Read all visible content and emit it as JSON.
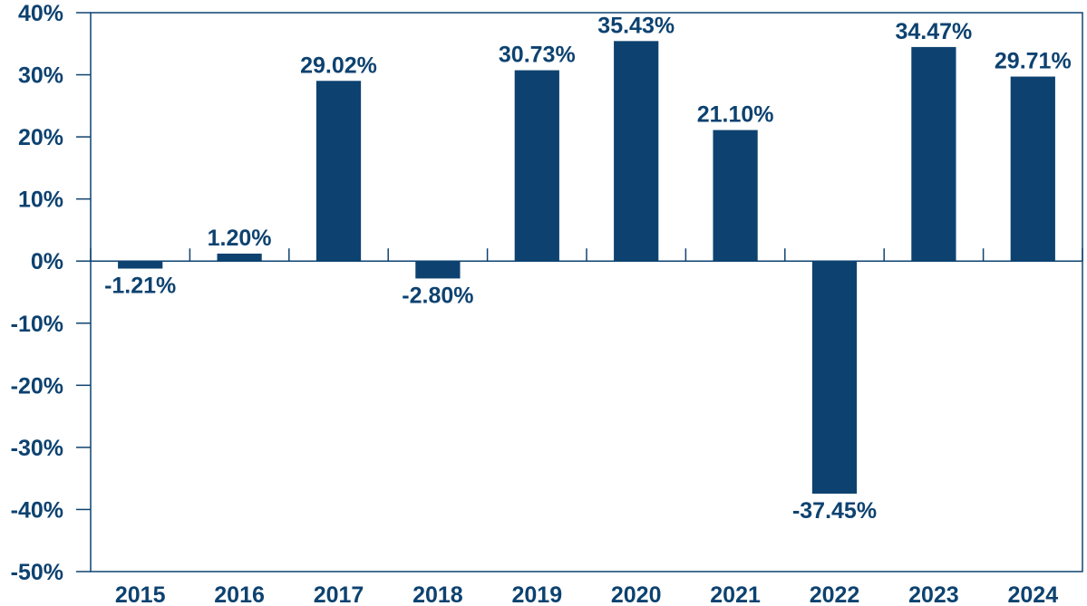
{
  "chart_data": {
    "type": "bar",
    "title": "",
    "xlabel": "",
    "ylabel": "",
    "categories": [
      "2015",
      "2016",
      "2017",
      "2018",
      "2019",
      "2020",
      "2021",
      "2022",
      "2023",
      "2024"
    ],
    "values": [
      -1.21,
      1.2,
      29.02,
      -2.8,
      30.73,
      35.43,
      21.1,
      -37.45,
      34.47,
      29.71
    ],
    "value_labels": [
      "-1.21%",
      "1.20%",
      "29.02%",
      "-2.80%",
      "30.73%",
      "35.43%",
      "21.10%",
      "-37.45%",
      "34.47%",
      "29.71%"
    ],
    "ylim": [
      -50,
      40
    ],
    "yticks": [
      40,
      30,
      20,
      10,
      0,
      -10,
      -20,
      -30,
      -40,
      -50
    ],
    "ytick_labels": [
      "40%",
      "30%",
      "20%",
      "10%",
      "0%",
      "-10%",
      "-20%",
      "-30%",
      "-40%",
      "-50%"
    ],
    "grid": false,
    "bar_color": "#0d4270",
    "axis_color": "#0d4270"
  }
}
